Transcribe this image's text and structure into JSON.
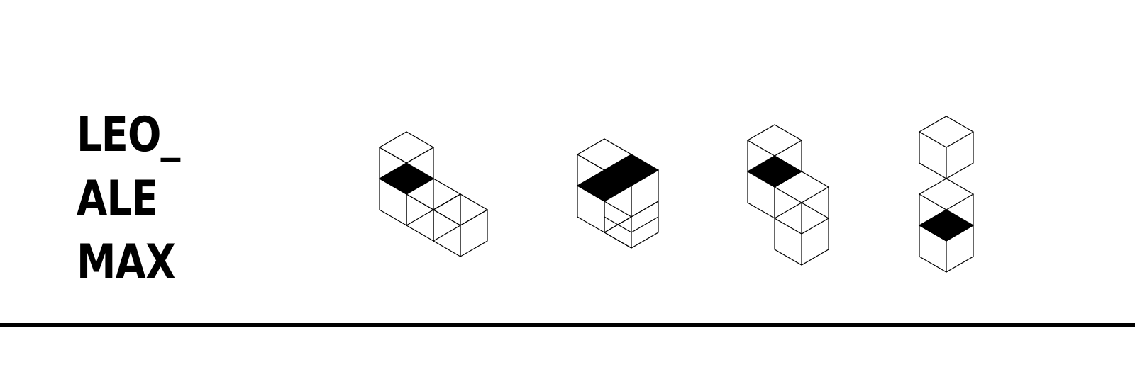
{
  "logo": {
    "lines": [
      "LEO_",
      "ALE",
      "MAX"
    ]
  },
  "figures": [
    {
      "id": "figure-1",
      "cubes": [
        [
          0,
          0
        ],
        [
          0,
          1
        ],
        [
          1,
          1.5
        ],
        [
          2,
          1
        ]
      ],
      "filled": [
        [
          0,
          1,
          "top"
        ]
      ]
    },
    {
      "id": "figure-2",
      "cubes": [
        [
          0,
          0
        ],
        [
          1,
          0.5
        ],
        [
          1,
          1.5
        ]
      ],
      "filled": [
        [
          0,
          0,
          "right-half"
        ],
        [
          1,
          0.5,
          "top"
        ]
      ]
    },
    {
      "id": "figure-3",
      "cubes": [
        [
          0,
          0
        ],
        [
          1,
          1.5
        ],
        [
          1,
          2.5
        ]
      ],
      "filled": [
        [
          0,
          0,
          "top-lower"
        ]
      ]
    },
    {
      "id": "figure-4",
      "cubes": [
        [
          0,
          0
        ],
        [
          0,
          2
        ],
        [
          0,
          3
        ]
      ],
      "filled": [
        [
          0,
          3,
          "top"
        ]
      ]
    }
  ],
  "colors": {
    "background": "#ffffff",
    "ink": "#000000"
  }
}
